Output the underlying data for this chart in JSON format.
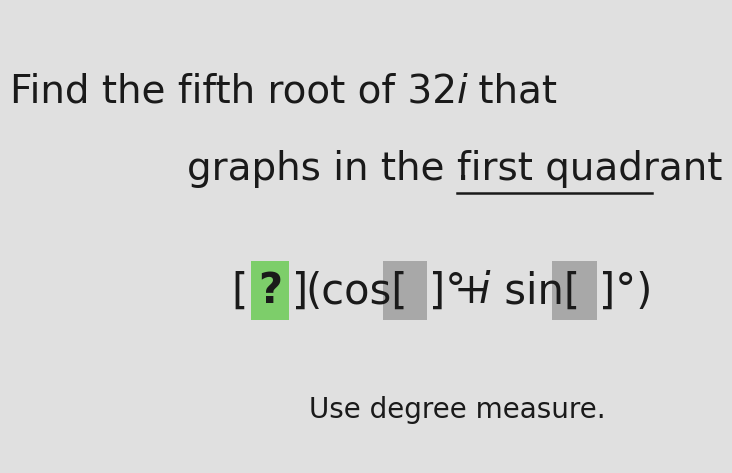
{
  "title_line1_plain": "Find the fifth root of 32",
  "title_line1_italic": "i",
  "title_line1_end": " that",
  "title_line2_plain": "graphs in the ",
  "title_line2_underline": "first quadrant",
  "title_line2_period": ".",
  "subtitle": "Use degree measure.",
  "bg_color": "#e0e0e0",
  "text_color": "#1a1a1a",
  "green_box_color": "#7dce6a",
  "gray_box_color": "#a8a8a8",
  "title_fontsize": 28,
  "formula_fontsize": 30,
  "subtitle_fontsize": 20,
  "degree_symbol": "°"
}
